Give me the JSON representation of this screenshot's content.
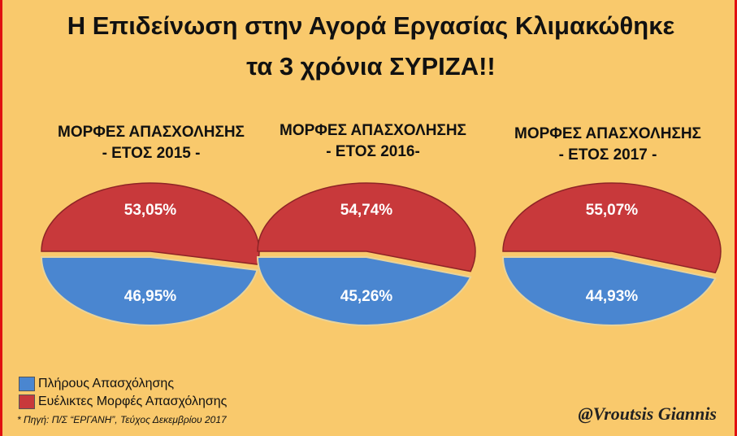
{
  "title": {
    "line1": "Η Επιδείνωση στην Αγορά Εργασίας Κλιμακώθηκε",
    "line2": "τα 3 χρόνια ΣΥΡΙΖΑ!!"
  },
  "chart_data": [
    {
      "type": "pie",
      "title_line1": "ΜΟΡΦΕΣ ΑΠΑΣΧΟΛΗΣΗΣ",
      "title_line2": "- ΕΤΟΣ 2015 -",
      "slices": [
        {
          "label": "Πλήρους Απασχόλησης",
          "value": 46.95,
          "text": "46,95%"
        },
        {
          "label": "Ευέλικτες Μορφές Απασχόλησης",
          "value": 53.05,
          "text": "53,05%"
        }
      ]
    },
    {
      "type": "pie",
      "title_line1": "ΜΟΡΦΕΣ ΑΠΑΣΧΟΛΗΣΗΣ",
      "title_line2": "- ΕΤΟΣ 2016-",
      "slices": [
        {
          "label": "Πλήρους Απασχόλησης",
          "value": 45.26,
          "text": "45,26%"
        },
        {
          "label": "Ευέλικτες Μορφές Απασχόλησης",
          "value": 54.74,
          "text": "54,74%"
        }
      ]
    },
    {
      "type": "pie",
      "title_line1": "ΜΟΡΦΕΣ ΑΠΑΣΧΟΛΗΣΗΣ",
      "title_line2": "- ΕΤΟΣ 2017 -",
      "slices": [
        {
          "label": "Πλήρους Απασχόλησης",
          "value": 44.93,
          "text": "44,93%"
        },
        {
          "label": "Ευέλικτες Μορφές Απασχόλησης",
          "value": 55.07,
          "text": "55,07%"
        }
      ]
    }
  ],
  "legend": [
    {
      "label": "Πλήρους Απασχόλησης",
      "color": "#4a86d0"
    },
    {
      "label": "Ευέλικτες Μορφές Απασχόλησης",
      "color": "#c8393b"
    }
  ],
  "source": "* Πηγή: Π/Σ “ΕΡΓΑΝΗ”, Τεύχος Δεκεμβρίου 2017",
  "signature": "@Vroutsis Giannis"
}
